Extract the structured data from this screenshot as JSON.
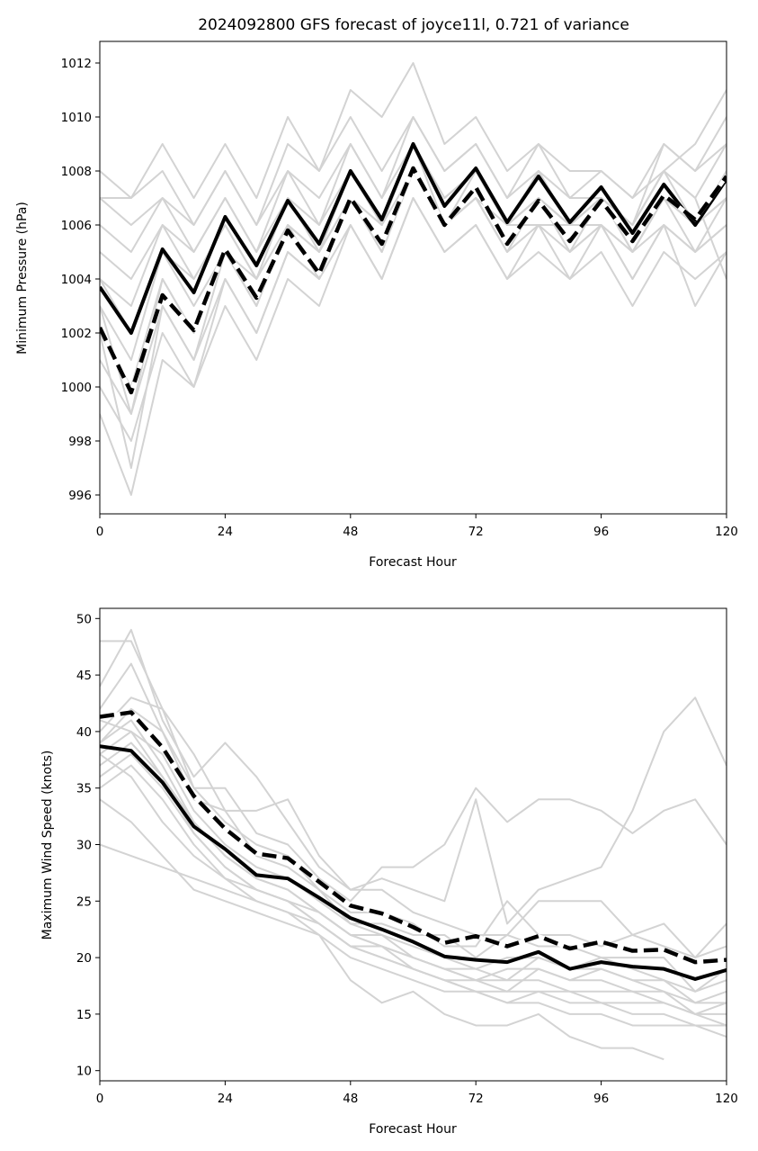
{
  "chart_data": [
    {
      "type": "line",
      "title": "2024092800 GFS forecast of joyce11l, 0.721 of variance",
      "xlabel": "Forecast Hour",
      "ylabel": "Minimum Pressure (hPa)",
      "xlim": [
        0,
        120
      ],
      "ylim": [
        995.3,
        1012.8
      ],
      "xticks": [
        0,
        24,
        48,
        72,
        96,
        120
      ],
      "yticks": [
        996,
        998,
        1000,
        1002,
        1004,
        1006,
        1008,
        1010,
        1012
      ],
      "x": [
        0,
        6,
        12,
        18,
        24,
        30,
        36,
        42,
        48,
        54,
        60,
        66,
        72,
        78,
        84,
        90,
        96,
        102,
        108,
        114,
        120
      ],
      "grid": false,
      "ensemble_color": "#d3d3d3",
      "ensemble": [
        [
          1008,
          1007,
          1009,
          1007,
          1009,
          1007,
          1010,
          1008,
          1011,
          1010,
          1012,
          1009,
          1010,
          1008,
          1009,
          1008,
          1008,
          1007,
          1009,
          1008,
          1009
        ],
        [
          1007,
          1007,
          1008,
          1006,
          1008,
          1006,
          1009,
          1008,
          1010,
          1008,
          1010,
          1008,
          1009,
          1007,
          1009,
          1007,
          1008,
          1007,
          1008,
          1009,
          1011
        ],
        [
          1007,
          1006,
          1007,
          1006,
          1008,
          1006,
          1008,
          1007,
          1009,
          1007,
          1010,
          1008,
          1009,
          1007,
          1008,
          1007,
          1007,
          1006,
          1009,
          1008,
          1010
        ],
        [
          1006,
          1005,
          1007,
          1005,
          1007,
          1005,
          1008,
          1006,
          1009,
          1007,
          1009,
          1007,
          1008,
          1006,
          1008,
          1006,
          1007,
          1006,
          1008,
          1007,
          1009
        ],
        [
          1005,
          1004,
          1006,
          1005,
          1007,
          1005,
          1007,
          1006,
          1008,
          1006,
          1009,
          1007,
          1008,
          1006,
          1008,
          1006,
          1007,
          1006,
          1008,
          1006,
          1008
        ],
        [
          1004,
          1003,
          1006,
          1004,
          1006,
          1004,
          1007,
          1005,
          1008,
          1006,
          1009,
          1007,
          1008,
          1006,
          1007,
          1006,
          1007,
          1005,
          1007,
          1006,
          1008
        ],
        [
          1004,
          1002,
          1005,
          1004,
          1006,
          1004,
          1007,
          1005,
          1007,
          1005,
          1008,
          1006,
          1007,
          1005,
          1007,
          1005,
          1007,
          1005,
          1007,
          1005,
          1007
        ],
        [
          1003,
          1001,
          1005,
          1003,
          1005,
          1004,
          1006,
          1005,
          1007,
          1005,
          1008,
          1006,
          1007,
          1005,
          1007,
          1005,
          1006,
          1005,
          1007,
          1006,
          1007
        ],
        [
          1002,
          1000,
          1004,
          1002,
          1005,
          1003,
          1006,
          1004,
          1007,
          1005,
          1008,
          1006,
          1007,
          1005,
          1006,
          1005,
          1006,
          1004,
          1006,
          1005,
          1006
        ],
        [
          1001,
          999,
          1003,
          1001,
          1004,
          1002,
          1005,
          1004,
          1006,
          1004,
          1007,
          1005,
          1006,
          1004,
          1006,
          1004,
          1006,
          1004,
          1006,
          1005,
          1006
        ],
        [
          1000,
          998,
          1002,
          1000,
          1003,
          1001,
          1004,
          1003,
          1006,
          1004,
          1007,
          1005,
          1006,
          1004,
          1005,
          1004,
          1005,
          1003,
          1005,
          1004,
          1005
        ],
        [
          999,
          996,
          1001,
          1000,
          1004,
          1002,
          1005,
          1004,
          1007,
          1006,
          1008,
          1006,
          1007,
          1006,
          1006,
          1006,
          1006,
          1005,
          1006,
          1003,
          1005
        ],
        [
          1002,
          997,
          1003,
          1001,
          1005,
          1003,
          1006,
          1005,
          1008,
          1006,
          1009,
          1007,
          1008,
          1006,
          1007,
          1006,
          1007,
          1006,
          1008,
          1007,
          1004
        ],
        [
          1003,
          999,
          1004,
          1002,
          1005,
          1003,
          1006,
          1004,
          1007,
          1006,
          1009,
          1006,
          1008,
          1006,
          1007,
          1006,
          1007,
          1005,
          1007,
          1006,
          1007
        ]
      ],
      "series": [
        {
          "values": [
            1003.7,
            1002.0,
            1005.1,
            1003.5,
            1006.3,
            1004.5,
            1006.9,
            1005.3,
            1008.0,
            1006.2,
            1009.0,
            1006.7,
            1008.1,
            1006.1,
            1007.8,
            1006.1,
            1007.4,
            1005.7,
            1007.5,
            1006.0,
            1007.7
          ],
          "style": "solid",
          "color": "#000000"
        },
        {
          "values": [
            1002.2,
            999.8,
            1003.4,
            1002.1,
            1005.1,
            1003.3,
            1005.8,
            1004.2,
            1007.0,
            1005.3,
            1008.1,
            1006.0,
            1007.4,
            1005.3,
            1006.9,
            1005.4,
            1006.9,
            1005.4,
            1007.1,
            1006.2,
            1007.8
          ],
          "style": "dashed",
          "color": "#000000"
        }
      ]
    },
    {
      "type": "line",
      "title": "",
      "xlabel": "Forecast Hour",
      "ylabel": "Maximum Wind Speed (knots)",
      "xlim": [
        0,
        120
      ],
      "ylim": [
        9.1,
        50.9
      ],
      "xticks": [
        0,
        24,
        48,
        72,
        96,
        120
      ],
      "yticks": [
        10,
        15,
        20,
        25,
        30,
        35,
        40,
        45,
        50
      ],
      "x": [
        0,
        6,
        12,
        18,
        24,
        30,
        36,
        42,
        48,
        54,
        60,
        66,
        72,
        78,
        84,
        90,
        96,
        102,
        108,
        114,
        120
      ],
      "grid": false,
      "ensemble_color": "#d3d3d3",
      "ensemble": [
        [
          48,
          48,
          42,
          35,
          35,
          31,
          30,
          27,
          25,
          28,
          28,
          30,
          35,
          32,
          34,
          34,
          33,
          31,
          33,
          34,
          30
        ],
        [
          44,
          49,
          41,
          36,
          39,
          36,
          32,
          28,
          26,
          27,
          26,
          25,
          34,
          23,
          26,
          27,
          28,
          33,
          40,
          43,
          37
        ],
        [
          42,
          46,
          40,
          34,
          33,
          33,
          34,
          29,
          26,
          26,
          24,
          23,
          22,
          22,
          25,
          25,
          25,
          22,
          23,
          20,
          23
        ],
        [
          40,
          43,
          42,
          38,
          33,
          29,
          28,
          26,
          24,
          24,
          23,
          21,
          21,
          25,
          22,
          22,
          21,
          22,
          21,
          20,
          21
        ],
        [
          39,
          42,
          40,
          35,
          32,
          30,
          29,
          26,
          23,
          23,
          22,
          22,
          20,
          22,
          21,
          21,
          20,
          20,
          20,
          17,
          19
        ],
        [
          38,
          40,
          38,
          33,
          30,
          28,
          27,
          25,
          23,
          22,
          21,
          20,
          19,
          20,
          20,
          19,
          19,
          18,
          18,
          17,
          18
        ],
        [
          37,
          39,
          36,
          32,
          29,
          27,
          26,
          24,
          22,
          22,
          20,
          19,
          18,
          19,
          19,
          18,
          18,
          17,
          17,
          16,
          17
        ],
        [
          36,
          38,
          35,
          31,
          28,
          26,
          25,
          24,
          22,
          21,
          20,
          19,
          18,
          18,
          18,
          17,
          17,
          17,
          16,
          15,
          16
        ],
        [
          35,
          37,
          34,
          30,
          27,
          26,
          25,
          23,
          21,
          21,
          19,
          18,
          17,
          17,
          17,
          17,
          16,
          16,
          16,
          15,
          15
        ],
        [
          30,
          29,
          28,
          27,
          26,
          25,
          24,
          23,
          21,
          20,
          19,
          18,
          17,
          16,
          17,
          16,
          16,
          15,
          15,
          14,
          14
        ],
        [
          34,
          32,
          29,
          26,
          25,
          24,
          23,
          22,
          20,
          19,
          18,
          17,
          17,
          16,
          16,
          15,
          15,
          14,
          14,
          14,
          13
        ],
        [
          38,
          36,
          32,
          29,
          27,
          25,
          24,
          22,
          18,
          16,
          17,
          15,
          14,
          14,
          15,
          13,
          12,
          12,
          11,
          null,
          null
        ],
        [
          41,
          40,
          36,
          31,
          28,
          26,
          25,
          23,
          21,
          20,
          19,
          18,
          18,
          17,
          19,
          18,
          19,
          18,
          17,
          15,
          14
        ],
        [
          39,
          41,
          37,
          32,
          29,
          27,
          26,
          24,
          22,
          21,
          20,
          19,
          19,
          18,
          20,
          19,
          20,
          19,
          18,
          16,
          16
        ]
      ],
      "series": [
        {
          "values": [
            38.7,
            38.3,
            35.5,
            31.6,
            29.6,
            27.3,
            27.0,
            25.3,
            23.5,
            22.5,
            21.4,
            20.1,
            19.8,
            19.6,
            20.5,
            19.0,
            19.6,
            19.2,
            19.0,
            18.1,
            18.9
          ],
          "style": "solid",
          "color": "#000000"
        },
        {
          "values": [
            41.3,
            41.7,
            38.6,
            34.3,
            31.4,
            29.2,
            28.8,
            26.7,
            24.6,
            23.9,
            22.7,
            21.3,
            21.9,
            21.0,
            21.9,
            20.8,
            21.4,
            20.6,
            20.7,
            19.6,
            19.8
          ],
          "style": "dashed",
          "color": "#000000"
        }
      ]
    }
  ]
}
